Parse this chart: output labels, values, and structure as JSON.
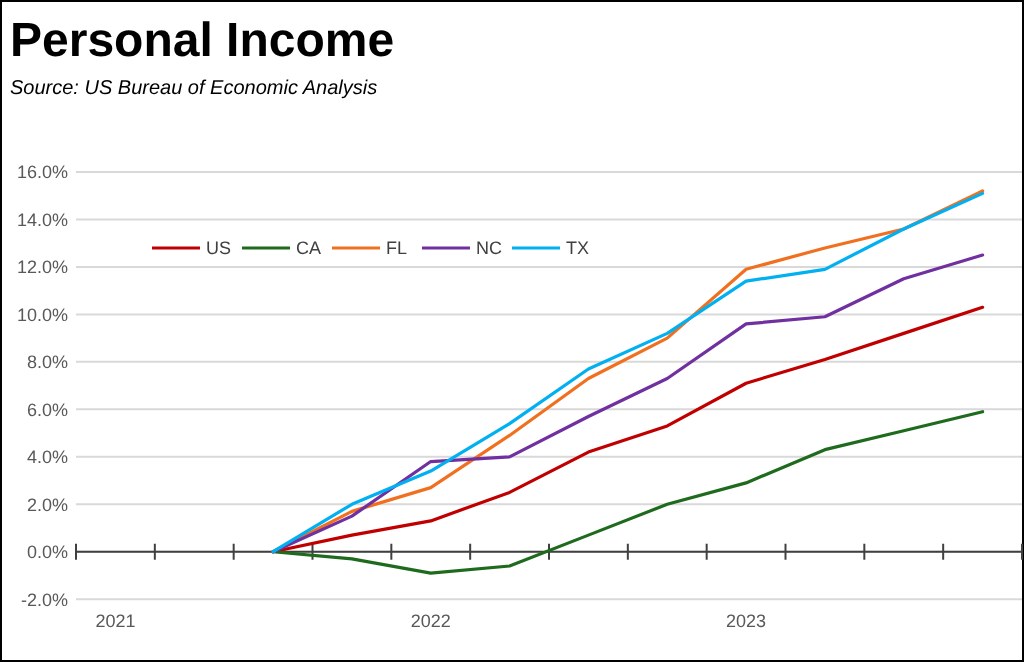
{
  "chart_data": {
    "type": "line",
    "title": "Personal Income",
    "subtitle": "Source:  US Bureau of Economic Analysis",
    "categories": [
      "2021",
      null,
      null,
      null,
      "2022",
      null,
      null,
      null,
      "2023",
      null,
      null,
      null
    ],
    "series": [
      {
        "name": "US",
        "color": "#c00000",
        "values": [
          null,
          null,
          0,
          0.7,
          1.3,
          2.5,
          4.2,
          5.3,
          7.1,
          8.1,
          9.2,
          10.3
        ]
      },
      {
        "name": "CA",
        "color": "#1e6b1e",
        "values": [
          null,
          null,
          0,
          -0.3,
          -0.9,
          -0.6,
          0.7,
          2.0,
          2.9,
          4.3,
          5.1,
          5.9
        ]
      },
      {
        "name": "FL",
        "color": "#f07020",
        "values": [
          null,
          null,
          0,
          1.7,
          2.7,
          4.9,
          7.3,
          9.0,
          11.9,
          12.8,
          13.6,
          15.2
        ]
      },
      {
        "name": "NC",
        "color": "#7030a0",
        "values": [
          null,
          null,
          0,
          1.5,
          3.8,
          4.0,
          5.7,
          7.3,
          9.6,
          9.9,
          11.5,
          12.5
        ]
      },
      {
        "name": "TX",
        "color": "#00b0f0",
        "values": [
          null,
          null,
          0,
          2.0,
          3.4,
          5.4,
          7.7,
          9.2,
          11.4,
          11.9,
          13.6,
          15.1
        ]
      }
    ],
    "ylim": [
      -2,
      16
    ],
    "yticks": [
      {
        "value": -2,
        "label": "-2.0%"
      },
      {
        "value": 0,
        "label": "0.0%"
      },
      {
        "value": 2,
        "label": "2.0%"
      },
      {
        "value": 4,
        "label": "4.0%"
      },
      {
        "value": 6,
        "label": "6.0%"
      },
      {
        "value": 8,
        "label": "8.0%"
      },
      {
        "value": 10,
        "label": "10.0%"
      },
      {
        "value": 12,
        "label": "12.0%"
      },
      {
        "value": 14,
        "label": "14.0%"
      },
      {
        "value": 16,
        "label": "16.0%"
      }
    ],
    "grid": "y",
    "legend": "top left",
    "marker": "none",
    "line_style": "solid"
  }
}
